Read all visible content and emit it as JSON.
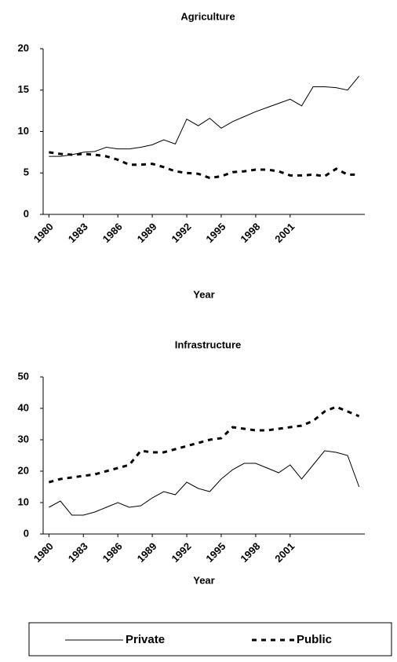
{
  "chart_data": [
    {
      "type": "line",
      "title": "Agriculture",
      "x_label": "Year",
      "x": [
        1980,
        1981,
        1982,
        1983,
        1984,
        1985,
        1986,
        1987,
        1988,
        1989,
        1990,
        1991,
        1992,
        1993,
        1994,
        1995,
        1996,
        1997,
        1998,
        1999,
        2000,
        2001,
        2002,
        2003,
        2004,
        2005,
        2006,
        2007
      ],
      "xlim": [
        1979.5,
        2007.5
      ],
      "xticks": [
        1980,
        1983,
        1986,
        1989,
        1992,
        1995,
        1998,
        2001
      ],
      "ylim": [
        0,
        20
      ],
      "yticks": [
        0,
        5,
        10,
        15,
        20
      ],
      "series": [
        {
          "name": "Private",
          "color": "#000000",
          "linestyle": "solid",
          "values": [
            7,
            7,
            7.2,
            7.5,
            7.6,
            8.1,
            7.9,
            7.9,
            8.1,
            8.4,
            9,
            8.5,
            11.5,
            10.7,
            11.6,
            10.4,
            11.2,
            11.8,
            12.4,
            12.9,
            13.4,
            13.9,
            13.1,
            15.4,
            15.4,
            15.3,
            15,
            16.7
          ]
        },
        {
          "name": "Public",
          "color": "#000000",
          "linestyle": "dashed",
          "values": [
            7.5,
            7.3,
            7.2,
            7.3,
            7.2,
            7,
            6.6,
            6,
            6,
            6.1,
            5.7,
            5.2,
            5,
            4.9,
            4.4,
            4.6,
            5.1,
            5.2,
            5.4,
            5.4,
            5.2,
            4.7,
            4.7,
            4.8,
            4.6,
            5.5,
            4.8,
            4.8
          ]
        }
      ]
    },
    {
      "type": "line",
      "title": "Infrastructure",
      "x_label": "Year",
      "x": [
        1980,
        1981,
        1982,
        1983,
        1984,
        1985,
        1986,
        1987,
        1988,
        1989,
        1990,
        1991,
        1992,
        1993,
        1994,
        1995,
        1996,
        1997,
        1998,
        1999,
        2000,
        2001,
        2002,
        2003,
        2004,
        2005,
        2006,
        2007
      ],
      "xlim": [
        1979.5,
        2007.5
      ],
      "xticks": [
        1980,
        1983,
        1986,
        1989,
        1992,
        1995,
        1998,
        2001
      ],
      "ylim": [
        0,
        50
      ],
      "yticks": [
        0,
        10,
        20,
        30,
        40,
        50
      ],
      "series": [
        {
          "name": "Private",
          "color": "#000000",
          "linestyle": "solid",
          "values": [
            8.5,
            10.5,
            6,
            6,
            7,
            8.5,
            10,
            8.5,
            9,
            11.5,
            13.5,
            12.5,
            16.5,
            14.5,
            13.5,
            17.5,
            20.5,
            22.5,
            22.5,
            21,
            19.5,
            22,
            17.5,
            22,
            26.5,
            26,
            25,
            15
          ]
        },
        {
          "name": "Public",
          "color": "#000000",
          "linestyle": "dashed",
          "values": [
            16.5,
            17.5,
            18,
            18.5,
            19,
            20,
            21,
            22,
            26.5,
            26,
            26,
            27,
            28,
            29,
            30,
            30.5,
            34,
            33.5,
            33,
            33,
            33.5,
            34,
            34.5,
            36,
            39,
            40.5,
            39,
            37.5
          ]
        }
      ]
    }
  ]
}
